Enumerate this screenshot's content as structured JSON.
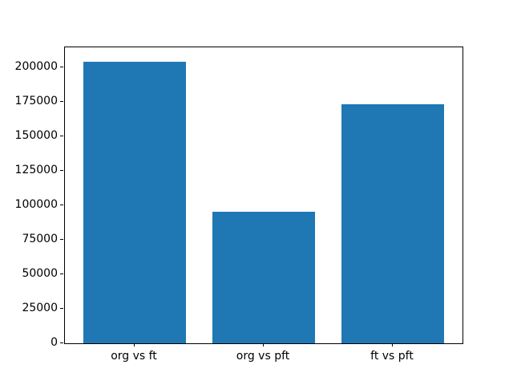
{
  "chart_data": {
    "type": "bar",
    "categories": [
      "org vs ft",
      "org vs pft",
      "ft vs pft"
    ],
    "values": [
      204000,
      95000,
      173000
    ],
    "title": "",
    "xlabel": "",
    "ylabel": "",
    "ylim": [
      0,
      214200
    ],
    "yticks": [
      0,
      25000,
      50000,
      75000,
      100000,
      125000,
      150000,
      175000,
      200000
    ],
    "grid": false,
    "legend_position": "none",
    "bar_width_fraction": 0.8,
    "x_margin_fraction": 0.05
  },
  "colors": {
    "bar": "#1f77b4",
    "spine": "#000000",
    "tick_label": "#000000",
    "background": "#ffffff"
  }
}
